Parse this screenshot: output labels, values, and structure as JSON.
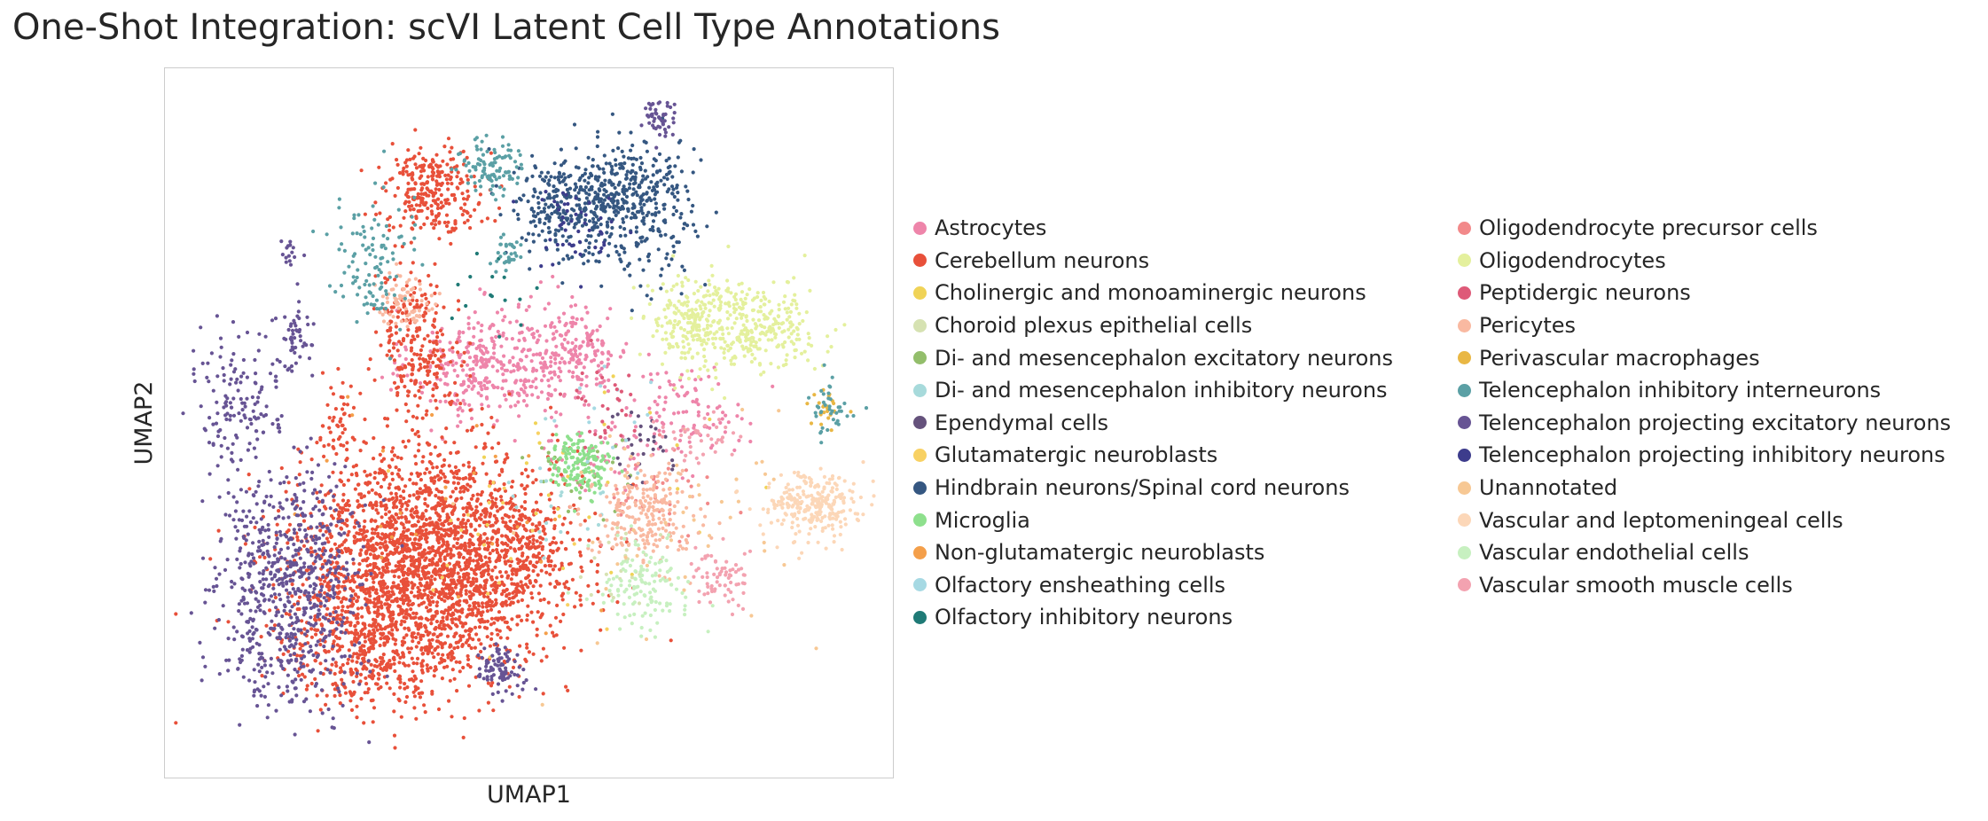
{
  "chart_data": {
    "type": "scatter",
    "title": "One-Shot Integration: scVI Latent Cell Type Annotations",
    "xlabel": "UMAP1",
    "ylabel": "UMAP2",
    "ticks": "none",
    "grid": false,
    "legend_position": "right, two columns",
    "point_size": "small",
    "xlim": [
      0,
      100
    ],
    "ylim": [
      0,
      100
    ],
    "series": [
      {
        "name": "Astrocytes",
        "color": "#EE85AA",
        "clusters": [
          {
            "x": 44,
            "y": 58,
            "sx": 5,
            "sy": 4,
            "n": 320
          },
          {
            "x": 56,
            "y": 60,
            "sx": 4,
            "sy": 3.5,
            "n": 220
          },
          {
            "x": 72,
            "y": 52,
            "sx": 4,
            "sy": 3,
            "n": 90
          },
          {
            "x": 61,
            "y": 46,
            "sx": 5,
            "sy": 3,
            "n": 60
          }
        ]
      },
      {
        "name": "Cerebellum neurons",
        "color": "#E8503A",
        "clusters": [
          {
            "x": 36,
            "y": 30,
            "sx": 9,
            "sy": 8,
            "n": 2600
          },
          {
            "x": 28,
            "y": 18,
            "sx": 5,
            "sy": 4,
            "n": 300
          },
          {
            "x": 37,
            "y": 83,
            "sx": 3.5,
            "sy": 3,
            "n": 280
          },
          {
            "x": 35,
            "y": 58,
            "sx": 3,
            "sy": 3,
            "n": 150
          },
          {
            "x": 34,
            "y": 66,
            "sx": 2.5,
            "sy": 3,
            "n": 90
          },
          {
            "x": 24,
            "y": 50,
            "sx": 1.5,
            "sy": 3,
            "n": 50
          },
          {
            "x": 50,
            "y": 32,
            "sx": 3,
            "sy": 4,
            "n": 120
          }
        ]
      },
      {
        "name": "Cholinergic and monoaminergic neurons",
        "color": "#F0D357",
        "clusters": [
          {
            "x": 58,
            "y": 40,
            "sx": 8,
            "sy": 8,
            "n": 25
          }
        ]
      },
      {
        "name": "Choroid plexus epithelial cells",
        "color": "#D6E2B2",
        "clusters": [
          {
            "x": 62,
            "y": 30,
            "sx": 3,
            "sy": 3,
            "n": 20
          }
        ]
      },
      {
        "name": "Di- and mesencephalon excitatory neurons",
        "color": "#93BE6B",
        "clusters": [
          {
            "x": 57,
            "y": 44,
            "sx": 4,
            "sy": 4,
            "n": 25
          }
        ]
      },
      {
        "name": "Di- and mesencephalon inhibitory neurons",
        "color": "#A7DADB",
        "clusters": [
          {
            "x": 55,
            "y": 38,
            "sx": 4,
            "sy": 4,
            "n": 20
          }
        ]
      },
      {
        "name": "Ependymal cells",
        "color": "#65527C",
        "clusters": [
          {
            "x": 66,
            "y": 47,
            "sx": 2.5,
            "sy": 2.5,
            "n": 30
          }
        ]
      },
      {
        "name": "Glutamatergic neuroblasts",
        "color": "#F8D163",
        "clusters": [
          {
            "x": 44,
            "y": 36,
            "sx": 8,
            "sy": 8,
            "n": 25
          }
        ]
      },
      {
        "name": "Hindbrain neurons/Spinal cord neurons",
        "color": "#355781",
        "clusters": [
          {
            "x": 55,
            "y": 80,
            "sx": 3.5,
            "sy": 3.5,
            "n": 240
          },
          {
            "x": 62,
            "y": 82,
            "sx": 3,
            "sy": 4,
            "n": 240
          },
          {
            "x": 68,
            "y": 84,
            "sx": 2.5,
            "sy": 3,
            "n": 80
          },
          {
            "x": 68,
            "y": 76,
            "sx": 3,
            "sy": 4,
            "n": 80
          }
        ]
      },
      {
        "name": "Microglia",
        "color": "#8EE08D",
        "clusters": [
          {
            "x": 57,
            "y": 44,
            "sx": 2,
            "sy": 2.2,
            "n": 160
          }
        ]
      },
      {
        "name": "Non-glutamatergic neuroblasts",
        "color": "#F49F4A",
        "clusters": [
          {
            "x": 40,
            "y": 40,
            "sx": 10,
            "sy": 8,
            "n": 25
          }
        ]
      },
      {
        "name": "Olfactory ensheathing cells",
        "color": "#A6D9E3",
        "clusters": [
          {
            "x": 60,
            "y": 50,
            "sx": 5,
            "sy": 5,
            "n": 15
          }
        ]
      },
      {
        "name": "Olfactory inhibitory neurons",
        "color": "#1F7A76",
        "clusters": [
          {
            "x": 45,
            "y": 70,
            "sx": 3,
            "sy": 3,
            "n": 15
          }
        ]
      },
      {
        "name": "Oligodendrocyte precursor cells",
        "color": "#F2898A",
        "clusters": [
          {
            "x": 68,
            "y": 40,
            "sx": 4,
            "sy": 4,
            "n": 40
          }
        ]
      },
      {
        "name": "Oligodendrocytes",
        "color": "#E4F09D",
        "clusters": [
          {
            "x": 73,
            "y": 64,
            "sx": 3.5,
            "sy": 3.5,
            "n": 260
          },
          {
            "x": 82,
            "y": 63,
            "sx": 4,
            "sy": 3,
            "n": 230
          }
        ]
      },
      {
        "name": "Peptidergic neurons",
        "color": "#DE5A78",
        "clusters": [
          {
            "x": 60,
            "y": 52,
            "sx": 3,
            "sy": 3,
            "n": 30
          }
        ]
      },
      {
        "name": "Pericytes",
        "color": "#F9B9A1",
        "clusters": [
          {
            "x": 66,
            "y": 37,
            "sx": 3.5,
            "sy": 3.5,
            "n": 220
          },
          {
            "x": 33,
            "y": 67,
            "sx": 2,
            "sy": 1.8,
            "n": 70
          }
        ]
      },
      {
        "name": "Perivascular macrophages",
        "color": "#E9B744",
        "clusters": [
          {
            "x": 91,
            "y": 52,
            "sx": 1.2,
            "sy": 1.5,
            "n": 25
          }
        ]
      },
      {
        "name": "Telencephalon inhibitory interneurons",
        "color": "#5BA0A5",
        "clusters": [
          {
            "x": 45,
            "y": 86,
            "sx": 2.2,
            "sy": 1.8,
            "n": 100
          },
          {
            "x": 28,
            "y": 72,
            "sx": 3,
            "sy": 5,
            "n": 110
          },
          {
            "x": 91,
            "y": 52,
            "sx": 1.5,
            "sy": 2,
            "n": 40
          },
          {
            "x": 47,
            "y": 74,
            "sx": 1,
            "sy": 1,
            "n": 30
          }
        ]
      },
      {
        "name": "Telencephalon projecting excitatory neurons",
        "color": "#675494",
        "clusters": [
          {
            "x": 17,
            "y": 27,
            "sx": 5,
            "sy": 8,
            "n": 700
          },
          {
            "x": 10,
            "y": 53,
            "sx": 3,
            "sy": 5,
            "n": 140
          },
          {
            "x": 46,
            "y": 15,
            "sx": 1.5,
            "sy": 1.5,
            "n": 90
          },
          {
            "x": 68,
            "y": 93,
            "sx": 1,
            "sy": 1.5,
            "n": 50
          },
          {
            "x": 18,
            "y": 62,
            "sx": 1,
            "sy": 3,
            "n": 50
          },
          {
            "x": 17,
            "y": 74,
            "sx": 0.8,
            "sy": 1,
            "n": 15
          }
        ]
      },
      {
        "name": "Telencephalon projecting inhibitory neurons",
        "color": "#3D3C8C",
        "clusters": [
          {
            "x": 56,
            "y": 78,
            "sx": 4,
            "sy": 3,
            "n": 50
          }
        ]
      },
      {
        "name": "Unannotated",
        "color": "#F7C894",
        "clusters": [
          {
            "x": 70,
            "y": 36,
            "sx": 10,
            "sy": 8,
            "n": 50
          }
        ]
      },
      {
        "name": "Vascular and leptomeningeal cells",
        "color": "#FCD7B8",
        "clusters": [
          {
            "x": 89,
            "y": 38,
            "sx": 3.5,
            "sy": 2.5,
            "n": 260
          }
        ]
      },
      {
        "name": "Vascular endothelial cells",
        "color": "#C7F0C0",
        "clusters": [
          {
            "x": 66,
            "y": 27,
            "sx": 3,
            "sy": 3,
            "n": 130
          }
        ]
      },
      {
        "name": "Vascular smooth muscle cells",
        "color": "#F3A2B0",
        "clusters": [
          {
            "x": 76,
            "y": 28,
            "sx": 2,
            "sy": 2,
            "n": 70
          },
          {
            "x": 73,
            "y": 48,
            "sx": 3,
            "sy": 2,
            "n": 40
          }
        ]
      }
    ]
  }
}
